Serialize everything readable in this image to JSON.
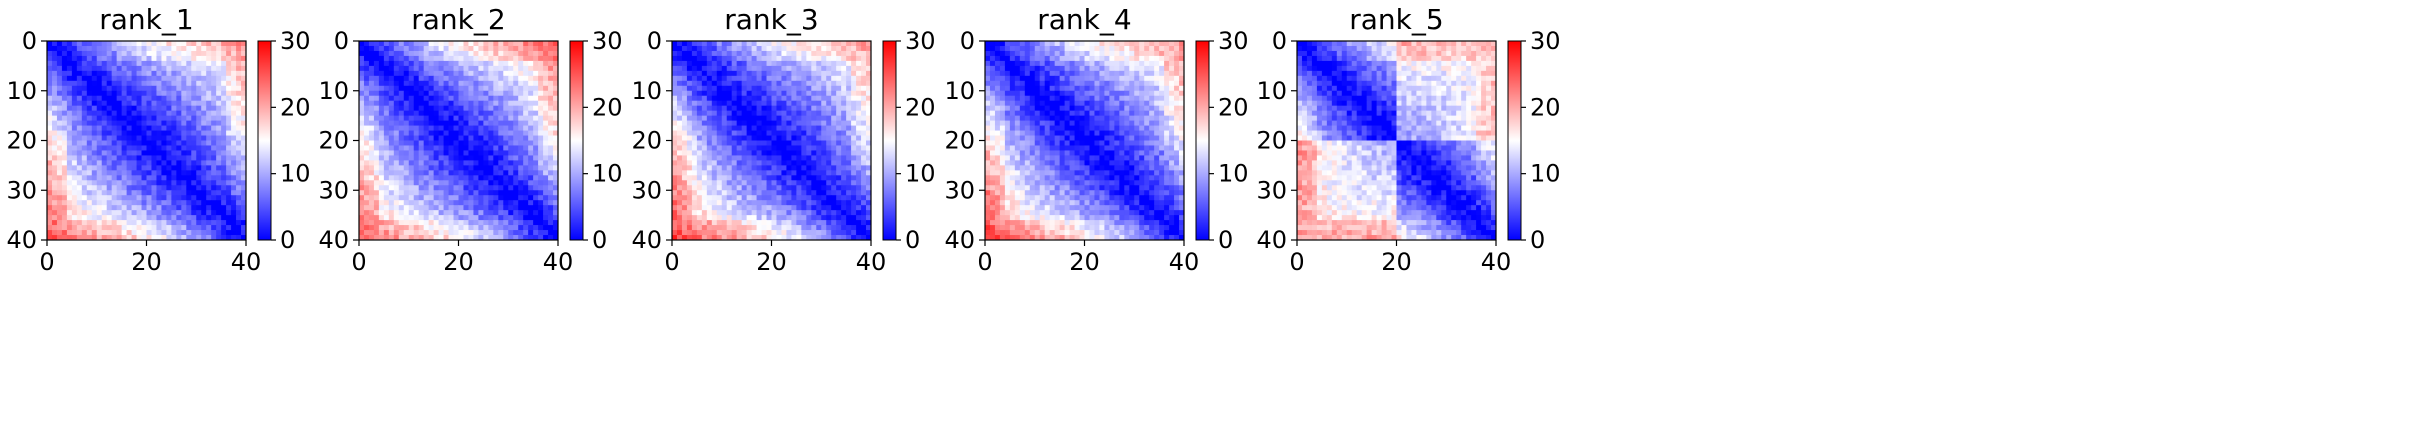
{
  "chart_data": [
    {
      "type": "heatmap",
      "title": "rank_1",
      "xlim": [
        0,
        40
      ],
      "ylim": [
        40,
        0
      ],
      "xticks": [
        "0",
        "20",
        "40"
      ],
      "yticks": [
        "0",
        "10",
        "20",
        "30",
        "40"
      ],
      "colorbar": {
        "range": [
          0,
          30
        ],
        "ticks": [
          "0",
          "10",
          "20",
          "30"
        ],
        "colormap": "bwr",
        "low_color": "#0000ff",
        "mid_color": "#ffffff",
        "high_color": "#ff0000"
      },
      "pattern": {
        "blocks": [],
        "lowerleft_corner": 28,
        "upperright_corner": 24
      }
    },
    {
      "type": "heatmap",
      "title": "rank_2",
      "xlim": [
        0,
        40
      ],
      "ylim": [
        40,
        0
      ],
      "xticks": [
        "0",
        "20",
        "40"
      ],
      "yticks": [
        "0",
        "10",
        "20",
        "30",
        "40"
      ],
      "colorbar": {
        "range": [
          0,
          30
        ],
        "ticks": [
          "0",
          "10",
          "20",
          "30"
        ],
        "colormap": "bwr",
        "low_color": "#0000ff",
        "mid_color": "#ffffff",
        "high_color": "#ff0000"
      },
      "pattern": {
        "blocks": [],
        "lowerleft_corner": 27,
        "upperright_corner": 27
      }
    },
    {
      "type": "heatmap",
      "title": "rank_3",
      "xlim": [
        0,
        40
      ],
      "ylim": [
        40,
        0
      ],
      "xticks": [
        "0",
        "20",
        "40"
      ],
      "yticks": [
        "0",
        "10",
        "20",
        "30",
        "40"
      ],
      "colorbar": {
        "range": [
          0,
          30
        ],
        "ticks": [
          "0",
          "10",
          "20",
          "30"
        ],
        "colormap": "bwr",
        "low_color": "#0000ff",
        "mid_color": "#ffffff",
        "high_color": "#ff0000"
      },
      "pattern": {
        "blocks": [],
        "lowerleft_corner": 29,
        "upperright_corner": 23
      }
    },
    {
      "type": "heatmap",
      "title": "rank_4",
      "xlim": [
        0,
        40
      ],
      "ylim": [
        40,
        0
      ],
      "xticks": [
        "0",
        "20",
        "40"
      ],
      "yticks": [
        "0",
        "10",
        "20",
        "30",
        "40"
      ],
      "colorbar": {
        "range": [
          0,
          30
        ],
        "ticks": [
          "0",
          "10",
          "20",
          "30"
        ],
        "colormap": "bwr",
        "low_color": "#0000ff",
        "mid_color": "#ffffff",
        "high_color": "#ff0000"
      },
      "pattern": {
        "blocks": [],
        "lowerleft_corner": 29,
        "upperright_corner": 24
      }
    },
    {
      "type": "heatmap",
      "title": "rank_5",
      "xlim": [
        0,
        40
      ],
      "ylim": [
        40,
        0
      ],
      "xticks": [
        "0",
        "20",
        "40"
      ],
      "yticks": [
        "0",
        "10",
        "20",
        "30",
        "40"
      ],
      "colorbar": {
        "range": [
          0,
          30
        ],
        "ticks": [
          "0",
          "10",
          "20",
          "30"
        ],
        "colormap": "bwr",
        "low_color": "#0000ff",
        "mid_color": "#ffffff",
        "high_color": "#ff0000"
      },
      "pattern": {
        "blocks": [
          [
            0,
            20
          ],
          [
            20,
            40
          ]
        ],
        "lowerleft_corner": 26,
        "upperright_corner": 24
      }
    }
  ]
}
